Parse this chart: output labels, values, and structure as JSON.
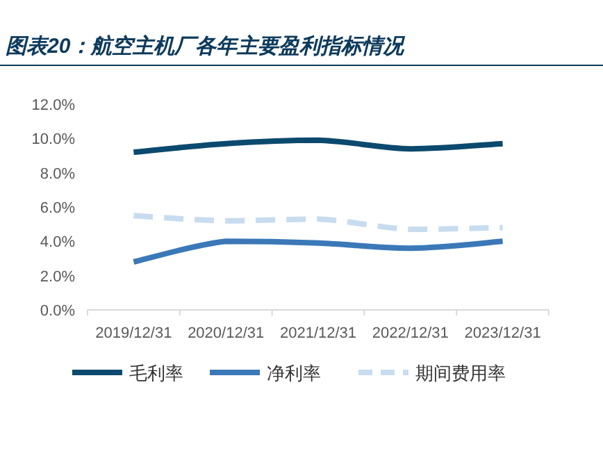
{
  "chart_data": {
    "type": "line",
    "title": "图表20：航空主机厂各年主要盈利指标情况",
    "categories": [
      "2019/12/31",
      "2020/12/31",
      "2021/12/31",
      "2022/12/31",
      "2023/12/31"
    ],
    "series": [
      {
        "name": "毛利率",
        "color": "#0b4a6e",
        "values": [
          9.2,
          9.7,
          9.9,
          9.4,
          9.7
        ]
      },
      {
        "name": "净利率",
        "color": "#3b78b8",
        "values": [
          2.8,
          4.0,
          3.9,
          3.6,
          4.0
        ]
      },
      {
        "name": "期间费用率",
        "color": "#c8dcf0",
        "values": [
          5.5,
          5.2,
          5.3,
          4.7,
          4.8
        ],
        "line_style": "dashed"
      }
    ],
    "ylim": [
      0,
      12
    ],
    "yticks": [
      {
        "value": 0,
        "label": "0.0%"
      },
      {
        "value": 2,
        "label": "2.0%"
      },
      {
        "value": 4,
        "label": "4.0%"
      },
      {
        "value": 6,
        "label": "6.0%"
      },
      {
        "value": 8,
        "label": "8.0%"
      },
      {
        "value": 10,
        "label": "10.0%"
      },
      {
        "value": 12,
        "label": "12.0%"
      }
    ],
    "grid": false,
    "legend": "bottom",
    "marker": "none"
  }
}
